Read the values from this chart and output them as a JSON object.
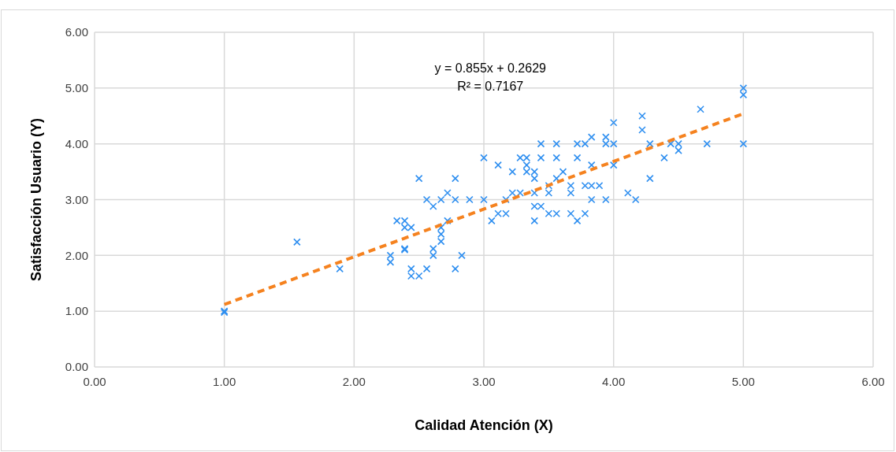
{
  "chart_data": {
    "type": "scatter",
    "xlabel": "Calidad Atención (X)",
    "ylabel": "Satisfacción Usuario (Y)",
    "xlim": [
      0,
      6
    ],
    "ylim": [
      0,
      6
    ],
    "xticks": [
      {
        "value": 0,
        "label": "0.00"
      },
      {
        "value": 1,
        "label": "1.00"
      },
      {
        "value": 2,
        "label": "2.00"
      },
      {
        "value": 3,
        "label": "3.00"
      },
      {
        "value": 4,
        "label": "4.00"
      },
      {
        "value": 5,
        "label": "5.00"
      },
      {
        "value": 6,
        "label": "6.00"
      }
    ],
    "yticks": [
      {
        "value": 0,
        "label": "0.00"
      },
      {
        "value": 1,
        "label": "1.00"
      },
      {
        "value": 2,
        "label": "2.00"
      },
      {
        "value": 3,
        "label": "3.00"
      },
      {
        "value": 4,
        "label": "4.00"
      },
      {
        "value": 5,
        "label": "5.00"
      },
      {
        "value": 6,
        "label": "6.00"
      }
    ],
    "grid": true,
    "annotations": [
      "y = 0.855x + 0.2629",
      "R² = 0.7167"
    ],
    "series": [
      {
        "type": "scatter",
        "color": "#2f8ff0",
        "marker": "cross",
        "x": [
          1.0,
          1.0,
          1.56,
          1.89,
          2.28,
          2.28,
          2.33,
          2.39,
          2.39,
          2.39,
          2.39,
          2.44,
          2.44,
          2.44,
          2.5,
          2.5,
          2.56,
          2.56,
          2.61,
          2.61,
          2.61,
          2.67,
          2.67,
          2.67,
          2.67,
          2.72,
          2.72,
          2.78,
          2.78,
          2.78,
          2.83,
          2.89,
          3.0,
          3.0,
          3.06,
          3.11,
          3.11,
          3.17,
          3.17,
          3.22,
          3.22,
          3.28,
          3.28,
          3.33,
          3.33,
          3.33,
          3.39,
          3.39,
          3.39,
          3.39,
          3.39,
          3.44,
          3.44,
          3.44,
          3.5,
          3.5,
          3.5,
          3.56,
          3.56,
          3.56,
          3.56,
          3.61,
          3.67,
          3.67,
          3.67,
          3.72,
          3.72,
          3.72,
          3.78,
          3.78,
          3.78,
          3.83,
          3.83,
          3.83,
          3.83,
          3.89,
          3.94,
          3.94,
          3.94,
          4.0,
          4.0,
          4.0,
          4.11,
          4.17,
          4.22,
          4.22,
          4.28,
          4.28,
          4.39,
          4.44,
          4.5,
          4.5,
          4.67,
          4.72,
          5.0,
          5.0,
          5.0
        ],
        "values": [
          1.0,
          0.98,
          2.24,
          1.76,
          2.0,
          1.88,
          2.62,
          2.62,
          2.5,
          2.12,
          2.1,
          2.5,
          1.76,
          1.63,
          3.38,
          1.63,
          3.0,
          1.76,
          2.88,
          2.12,
          2.0,
          3.0,
          2.5,
          2.38,
          2.25,
          3.12,
          2.62,
          3.38,
          3.0,
          1.76,
          2.0,
          3.0,
          3.75,
          3.0,
          2.62,
          3.62,
          2.75,
          3.0,
          2.75,
          3.5,
          3.12,
          3.75,
          3.12,
          3.75,
          3.62,
          3.5,
          3.5,
          3.38,
          3.12,
          2.88,
          2.62,
          4.0,
          3.75,
          2.88,
          3.25,
          3.12,
          2.75,
          4.0,
          3.75,
          3.38,
          2.75,
          3.5,
          3.25,
          3.12,
          2.75,
          4.0,
          3.75,
          2.62,
          4.0,
          3.25,
          2.75,
          4.12,
          3.62,
          3.25,
          3.0,
          3.25,
          4.12,
          4.0,
          3.0,
          4.38,
          4.0,
          3.62,
          3.12,
          3.0,
          4.5,
          4.25,
          4.0,
          3.38,
          3.75,
          4.0,
          4.0,
          3.88,
          4.62,
          4.0,
          5.0,
          4.88,
          4.0
        ]
      },
      {
        "type": "line",
        "color": "#f5821f",
        "line_style": "dashed",
        "marker": "none",
        "x": [
          1,
          5
        ],
        "values": [
          1.12,
          4.54
        ]
      }
    ]
  }
}
